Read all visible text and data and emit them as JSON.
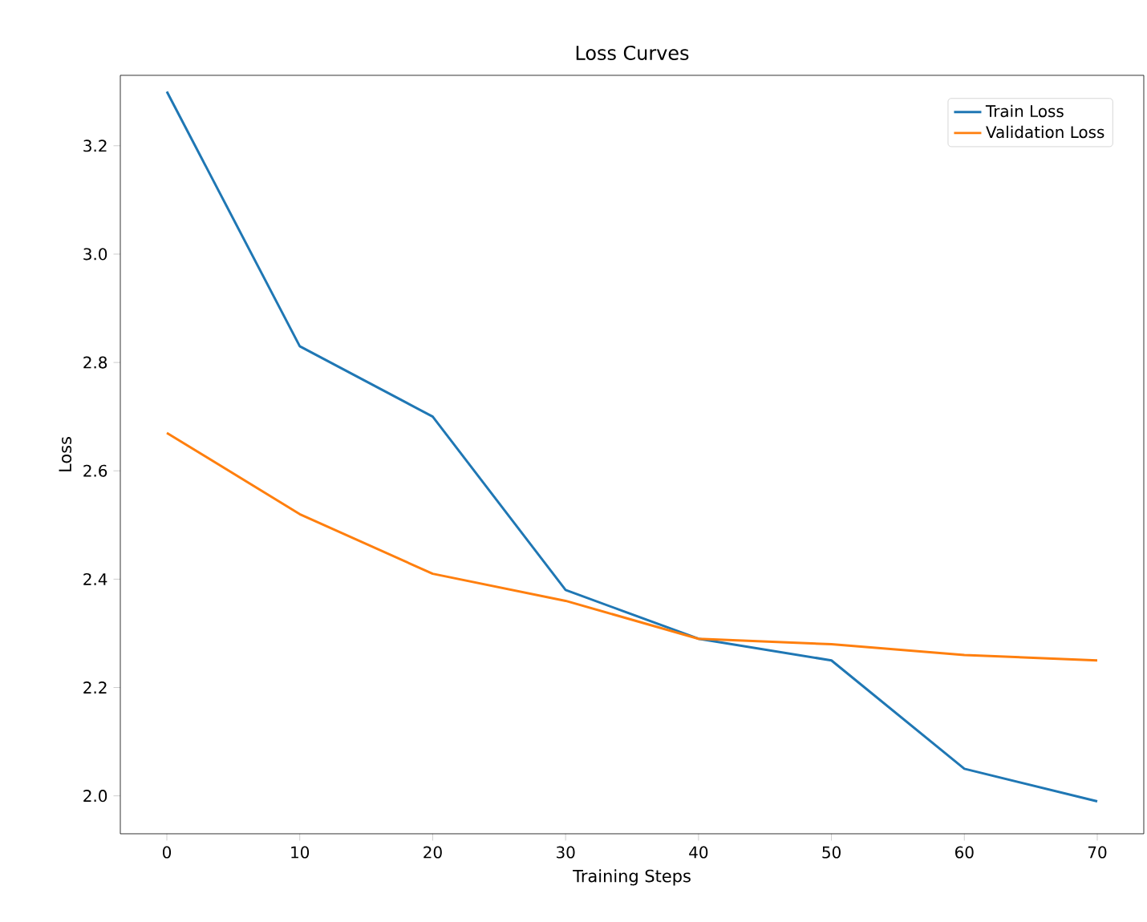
{
  "chart_data": {
    "type": "line",
    "title": "Loss Curves",
    "xlabel": "Training Steps",
    "ylabel": "Loss",
    "x": [
      0,
      10,
      20,
      30,
      40,
      50,
      60,
      70
    ],
    "series": [
      {
        "name": "Train Loss",
        "color": "#1f77b4",
        "values": [
          3.3,
          2.83,
          2.7,
          2.38,
          2.29,
          2.25,
          2.05,
          1.99
        ]
      },
      {
        "name": "Validation Loss",
        "color": "#ff7f0e",
        "values": [
          2.67,
          2.52,
          2.41,
          2.36,
          2.29,
          2.28,
          2.26,
          2.25
        ]
      }
    ],
    "xlim": [
      -3.5,
      73.5
    ],
    "ylim": [
      1.93,
      3.33
    ],
    "xticks": [
      0,
      10,
      20,
      30,
      40,
      50,
      60,
      70
    ],
    "yticks": [
      {
        "value": 2.0,
        "label": "2.0"
      },
      {
        "value": 2.2,
        "label": "2.2"
      },
      {
        "value": 2.4,
        "label": "2.4"
      },
      {
        "value": 2.6,
        "label": "2.6"
      },
      {
        "value": 2.8,
        "label": "2.8"
      },
      {
        "value": 3.0,
        "label": "3.0"
      },
      {
        "value": 3.2,
        "label": "3.2"
      }
    ],
    "legend": "top right",
    "grid": false,
    "marker": "none",
    "line_style": "solid"
  }
}
